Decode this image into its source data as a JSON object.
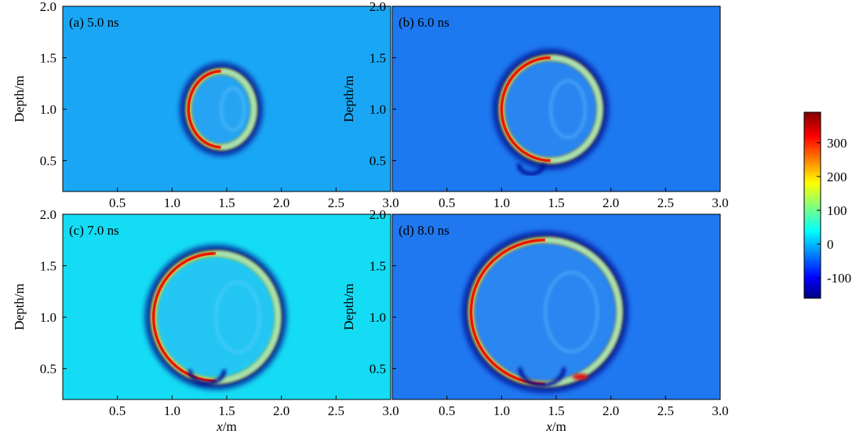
{
  "chart_data": {
    "type": "heatmap",
    "description_type": "wavefield snapshots (2x2 panels)",
    "panels": [
      {
        "id": "a",
        "label": "(a) 5.0 ns",
        "time_ns": 5.0,
        "background": "#19a7f5",
        "ring": {
          "cx": 1.45,
          "cy": 1.0,
          "rx": 0.3,
          "ry": 0.37
        }
      },
      {
        "id": "b",
        "label": "(b) 6.0 ns",
        "time_ns": 6.0,
        "background": "#1d79f0",
        "ring": {
          "cx": 1.45,
          "cy": 1.0,
          "rx": 0.45,
          "ry": 0.5
        }
      },
      {
        "id": "c",
        "label": "(c) 7.0 ns",
        "time_ns": 7.0,
        "background": "#14dcf4",
        "ring": {
          "cx": 1.4,
          "cy": 1.0,
          "rx": 0.57,
          "ry": 0.62
        }
      },
      {
        "id": "d",
        "label": "(d) 8.0 ns",
        "time_ns": 8.0,
        "background": "#1f78f0",
        "ring": {
          "cx": 1.4,
          "cy": 1.05,
          "rx": 0.68,
          "ry": 0.7
        }
      }
    ],
    "xlabel_var": "x",
    "xlabel_unit": "/m",
    "ylabel": "Depth/m",
    "xlim": [
      0,
      3.0
    ],
    "ylim": [
      2.0,
      0.2
    ],
    "xticks": [
      "0.5",
      "1.0",
      "1.5",
      "2.0",
      "2.5",
      "3.0"
    ],
    "yticks": [
      "0.5",
      "1.0",
      "1.5",
      "2.0"
    ],
    "colorbar": {
      "ticks": [
        "300",
        "200",
        "100",
        "0",
        "-100"
      ],
      "range": [
        -160,
        390
      ],
      "colormap": "jet"
    }
  }
}
